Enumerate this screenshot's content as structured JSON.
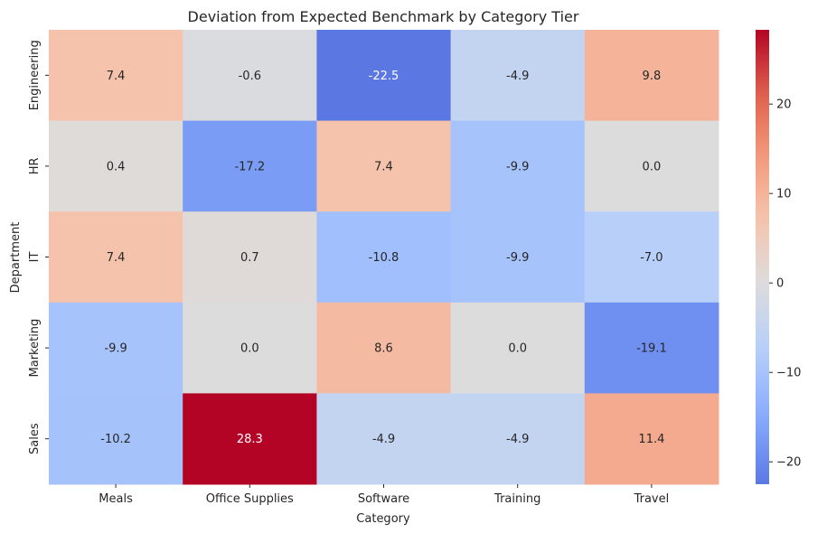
{
  "chart_data": {
    "type": "heatmap",
    "title": "Deviation from Expected Benchmark by Category Tier",
    "xlabel": "Category",
    "ylabel": "Department",
    "x_categories": [
      "Meals",
      "Office Supplies",
      "Software",
      "Training",
      "Travel"
    ],
    "y_categories": [
      "Engineering",
      "HR",
      "IT",
      "Marketing",
      "Sales"
    ],
    "values": [
      [
        7.4,
        -0.6,
        -22.5,
        -4.9,
        9.8
      ],
      [
        0.4,
        -17.2,
        7.4,
        -9.9,
        0.0
      ],
      [
        7.4,
        0.7,
        -10.8,
        -9.9,
        -7.0
      ],
      [
        -9.9,
        0.0,
        8.6,
        0.0,
        -19.1
      ],
      [
        -10.2,
        28.3,
        -4.9,
        -4.9,
        11.4
      ]
    ],
    "colormap": "coolwarm",
    "center": 0,
    "color_range": [
      -22.5,
      28.3
    ],
    "colorbar_ticks": [
      20,
      10,
      0,
      -10,
      -20
    ],
    "colorbar_tick_labels": [
      "20",
      "10",
      "0",
      "−10",
      "−20"
    ],
    "annotation_format": "0.1f",
    "low_color": "#3b4cc0",
    "mid_color": "#dddcdc",
    "high_color": "#b40426"
  }
}
